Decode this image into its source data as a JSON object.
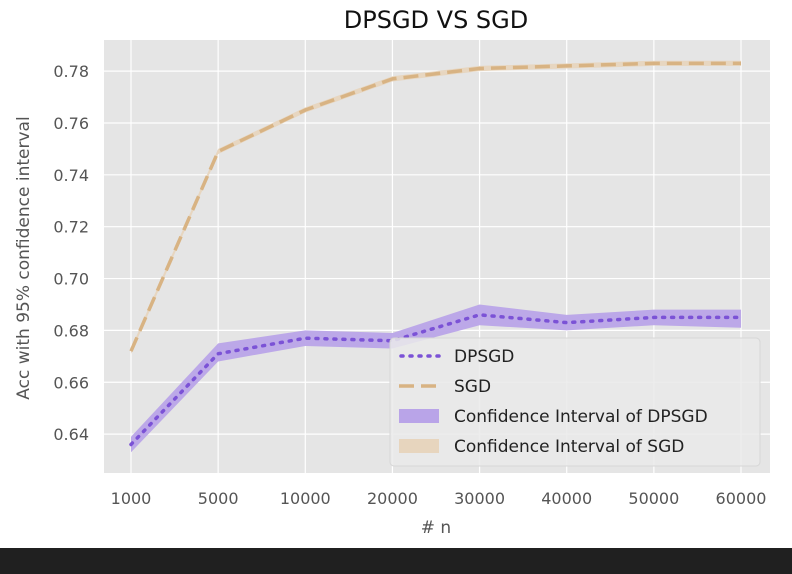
{
  "chart_data": {
    "type": "line",
    "title": "DPSGD VS SGD",
    "xlabel": "# n",
    "ylabel": "Acc with 95% confidence interval",
    "categories": [
      "1000",
      "5000",
      "10000",
      "20000",
      "30000",
      "40000",
      "50000",
      "60000"
    ],
    "ylim": [
      0.625,
      0.792
    ],
    "yticks": [
      "0.64",
      "0.66",
      "0.68",
      "0.70",
      "0.72",
      "0.74",
      "0.76",
      "0.78"
    ],
    "grid": true,
    "legend_position": "lower-right",
    "series": [
      {
        "name": "DPSGD",
        "style": "dotted",
        "color": "#7b52d6",
        "values": [
          0.636,
          0.671,
          0.677,
          0.676,
          0.686,
          0.683,
          0.685,
          0.685
        ],
        "ci_low": [
          0.633,
          0.668,
          0.674,
          0.673,
          0.682,
          0.68,
          0.682,
          0.681
        ],
        "ci_high": [
          0.639,
          0.675,
          0.68,
          0.679,
          0.69,
          0.686,
          0.688,
          0.688
        ]
      },
      {
        "name": "SGD",
        "style": "dashed",
        "color": "#d8b383",
        "values": [
          0.672,
          0.749,
          0.765,
          0.777,
          0.781,
          0.782,
          0.783,
          0.783
        ],
        "ci_low": [
          0.671,
          0.748,
          0.764,
          0.776,
          0.78,
          0.781,
          0.782,
          0.782
        ],
        "ci_high": [
          0.673,
          0.75,
          0.766,
          0.778,
          0.782,
          0.783,
          0.784,
          0.784
        ]
      }
    ],
    "legend": [
      "DPSGD",
      "SGD",
      "Confidence Interval of DPSGD",
      "Confidence Interval of SGD"
    ],
    "colors": {
      "plot_background": "#e5e5e5",
      "grid": "#ffffff",
      "dpsgd_band": "#b9a4e8",
      "sgd_band": "#e7d5be"
    }
  }
}
